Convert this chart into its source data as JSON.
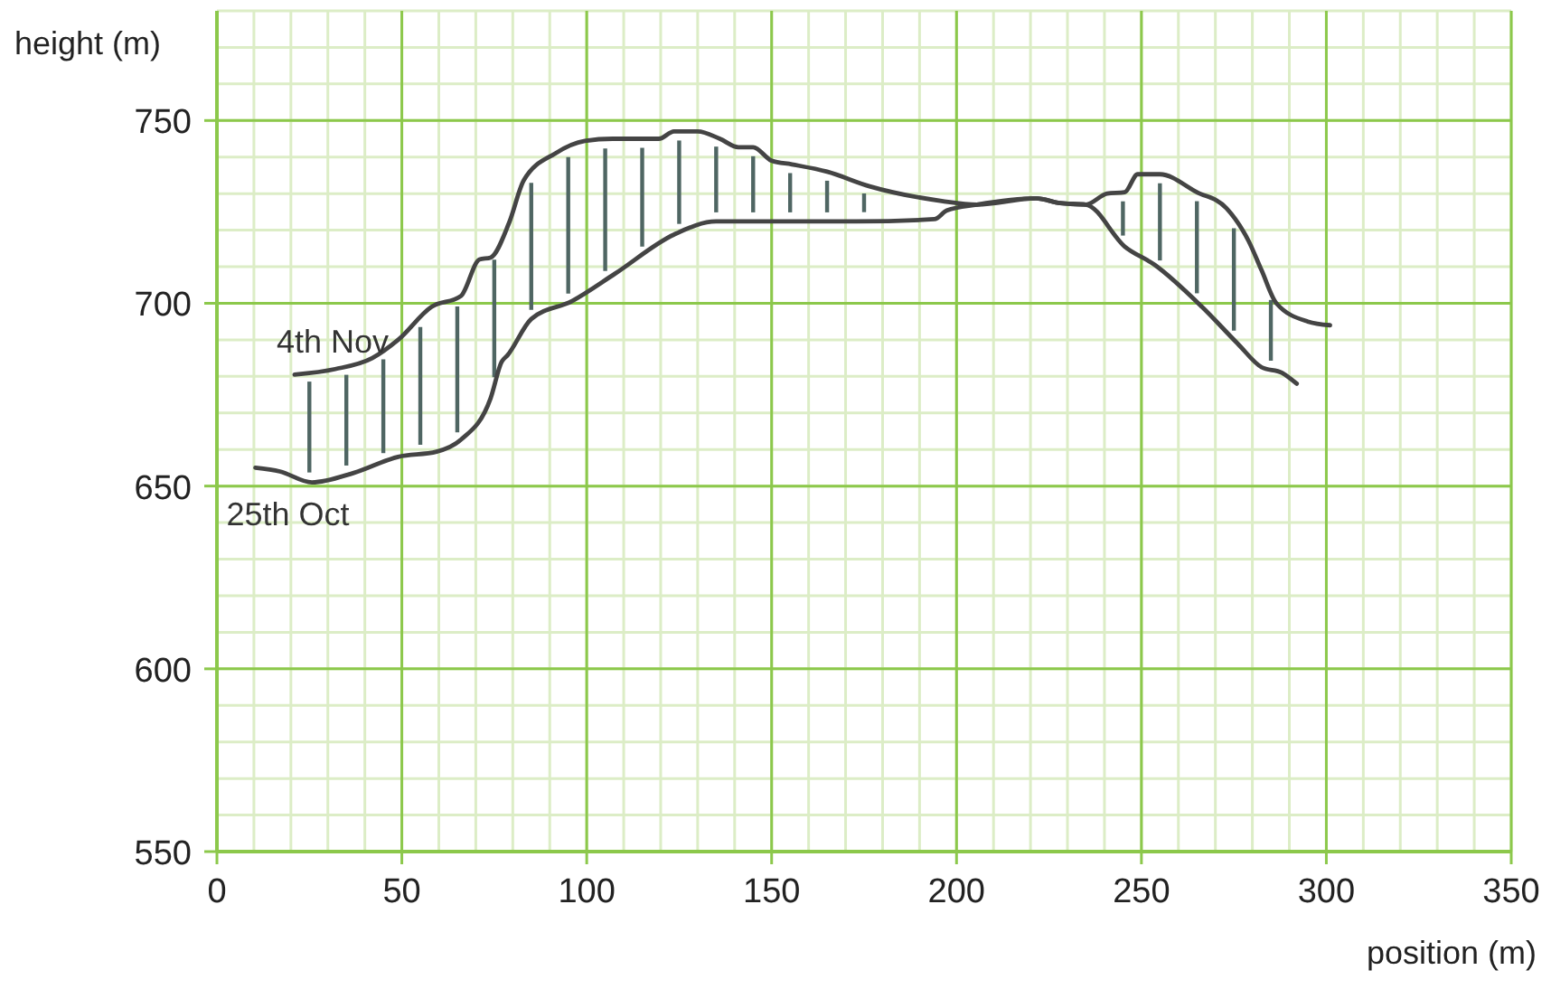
{
  "chart_data": {
    "type": "line",
    "xlabel": "position (m)",
    "ylabel": "height (m)",
    "xlim": [
      0,
      350
    ],
    "ylim": [
      550,
      780
    ],
    "xticks": [
      0,
      50,
      100,
      150,
      200,
      250,
      300,
      350
    ],
    "yticks": [
      550,
      600,
      650,
      700,
      750
    ],
    "grid": true,
    "line_style": "solid",
    "series": [
      {
        "name": "4th Nov",
        "color": "#444444",
        "x": [
          21,
          32,
          42,
          49,
          58,
          66,
          71,
          74,
          79,
          83,
          91.5,
          99.5,
          107,
          119.5,
          123.6,
          130,
          136,
          141,
          145,
          150,
          155.5,
          165,
          176.5,
          196,
          205.5,
          221.5,
          228,
          235,
          240.7,
          245.5,
          249,
          255,
          265,
          273,
          279,
          282.5,
          286.5,
          295,
          301
        ],
        "values": [
          680.5,
          682,
          685,
          690,
          699,
          702,
          712,
          712.5,
          722,
          733.7,
          741,
          744.4,
          745,
          745,
          747,
          747,
          745,
          742.7,
          742.7,
          739,
          738,
          736,
          732,
          728,
          727,
          728.7,
          727.4,
          727,
          730,
          730.4,
          735.3,
          735.3,
          730.4,
          726,
          717,
          709,
          700,
          695,
          694
        ]
      },
      {
        "name": "25th Oct",
        "color": "#444444",
        "x": [
          10.4,
          17,
          25.7,
          37,
          49,
          59.4,
          66,
          74,
          77,
          78.6,
          85,
          96,
          107.5,
          123.6,
          135,
          173,
          194,
          197.4,
          205.5,
          221.5,
          228,
          235,
          245.5,
          253.6,
          266.4,
          276,
          282.5,
          288,
          292
        ],
        "values": [
          655,
          654,
          651,
          653.6,
          658,
          659.4,
          662.7,
          674,
          684,
          685.8,
          695.7,
          700.6,
          708,
          718.8,
          722.4,
          722.4,
          723,
          725.4,
          727,
          728.7,
          727.4,
          727,
          715.5,
          710.5,
          699,
          689,
          682.5,
          681,
          678
        ]
      }
    ]
  }
}
